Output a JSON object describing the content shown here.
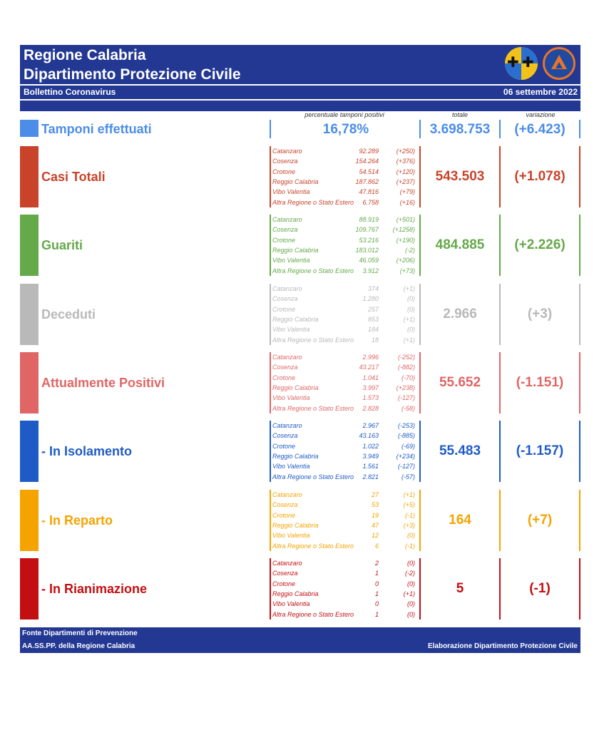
{
  "header": {
    "title_line1": "Regione Calabria",
    "title_line2": "Dipartimento Protezione Civile",
    "subtitle": "Bollettino Coronavirus",
    "date": "06 settembre 2022"
  },
  "columns": {
    "percent": "percentuale tamponi positivi",
    "total": "totale",
    "variation": "variazione"
  },
  "tamponi": {
    "label": "Tamponi effettuati",
    "percent": "16,78%",
    "total": "3.698.753",
    "variation": "(+6.423)",
    "color": "#4b8de8"
  },
  "sections": [
    {
      "label": "Casi Totali",
      "total": "543.503",
      "variation": "(+1.078)",
      "color": "#c9432a",
      "provinces": [
        {
          "name": "Catanzaro",
          "value": "92.289",
          "delta": "(+250)"
        },
        {
          "name": "Cosenza",
          "value": "154.264",
          "delta": "(+376)"
        },
        {
          "name": "Crotone",
          "value": "54.514",
          "delta": "(+120)"
        },
        {
          "name": "Reggio Calabria",
          "value": "187.862",
          "delta": "(+237)"
        },
        {
          "name": "Vibo Valentia",
          "value": "47.816",
          "delta": "(+79)"
        },
        {
          "name": "Altra Regione o Stato Estero",
          "value": "6.758",
          "delta": "(+16)"
        }
      ]
    },
    {
      "label": "Guariti",
      "total": "484.885",
      "variation": "(+2.226)",
      "color": "#64a94a",
      "provinces": [
        {
          "name": "Catanzaro",
          "value": "88.919",
          "delta": "(+501)"
        },
        {
          "name": "Cosenza",
          "value": "109.767",
          "delta": "(+1258)"
        },
        {
          "name": "Crotone",
          "value": "53.216",
          "delta": "(+190)"
        },
        {
          "name": "Reggio Calabria",
          "value": "183.012",
          "delta": "(-2)"
        },
        {
          "name": "Vibo Valentia",
          "value": "46.059",
          "delta": "(+206)"
        },
        {
          "name": "Altra Regione o Stato Estero",
          "value": "3.912",
          "delta": "(+73)"
        }
      ]
    },
    {
      "label": "Deceduti",
      "total": "2.966",
      "variation": "(+3)",
      "color": "#b9b9b9",
      "provinces": [
        {
          "name": "Catanzaro",
          "value": "374",
          "delta": "(+1)"
        },
        {
          "name": "Cosenza",
          "value": "1.280",
          "delta": "(0)"
        },
        {
          "name": "Crotone",
          "value": "257",
          "delta": "(0)"
        },
        {
          "name": "Reggio Calabria",
          "value": "853",
          "delta": "(+1)"
        },
        {
          "name": "Vibo Valentia",
          "value": "184",
          "delta": "(0)"
        },
        {
          "name": "Altra Regione o Stato Estero",
          "value": "18",
          "delta": "(+1)"
        }
      ]
    },
    {
      "label": "Attualmente Positivi",
      "total": "55.652",
      "variation": "(-1.151)",
      "color": "#e06666",
      "provinces": [
        {
          "name": "Catanzaro",
          "value": "2.996",
          "delta": "(-252)"
        },
        {
          "name": "Cosenza",
          "value": "43.217",
          "delta": "(-882)"
        },
        {
          "name": "Crotone",
          "value": "1.041",
          "delta": "(-70)"
        },
        {
          "name": "Reggio Calabria",
          "value": "3.997",
          "delta": "(+238)"
        },
        {
          "name": "Vibo Valentia",
          "value": "1.573",
          "delta": "(-127)"
        },
        {
          "name": "Altra Regione o Stato Estero",
          "value": "2.828",
          "delta": "(-58)"
        }
      ]
    },
    {
      "label": " - In Isolamento",
      "total": "55.483",
      "variation": "(-1.157)",
      "color": "#1f5bc6",
      "provinces": [
        {
          "name": "Catanzaro",
          "value": "2.967",
          "delta": "(-253)"
        },
        {
          "name": "Cosenza",
          "value": "43.163",
          "delta": "(-885)"
        },
        {
          "name": "Crotone",
          "value": "1.022",
          "delta": "(-69)"
        },
        {
          "name": "Reggio Calabria",
          "value": "3.949",
          "delta": "(+234)"
        },
        {
          "name": "Vibo Valentia",
          "value": "1.561",
          "delta": "(-127)"
        },
        {
          "name": "Altra Regione o Stato Estero",
          "value": "2.821",
          "delta": "(-57)"
        }
      ]
    },
    {
      "label": " - In Reparto",
      "total": "164",
      "variation": "(+7)",
      "color": "#f5a300",
      "provinces": [
        {
          "name": "Catanzaro",
          "value": "27",
          "delta": "(+1)"
        },
        {
          "name": "Cosenza",
          "value": "53",
          "delta": "(+5)"
        },
        {
          "name": "Crotone",
          "value": "19",
          "delta": "(-1)"
        },
        {
          "name": "Reggio Calabria",
          "value": "47",
          "delta": "(+3)"
        },
        {
          "name": "Vibo Valentia",
          "value": "12",
          "delta": "(0)"
        },
        {
          "name": "Altra Regione o Stato Estero",
          "value": "6",
          "delta": "(-1)"
        }
      ]
    },
    {
      "label": " - In Rianimazione",
      "total": "5",
      "variation": "(-1)",
      "color": "#c40f12",
      "provinces": [
        {
          "name": "Catanzaro",
          "value": "2",
          "delta": "(0)"
        },
        {
          "name": "Cosenza",
          "value": "1",
          "delta": "(-2)"
        },
        {
          "name": "Crotone",
          "value": "0",
          "delta": "(0)"
        },
        {
          "name": "Reggio Calabria",
          "value": "1",
          "delta": "(+1)"
        },
        {
          "name": "Vibo Valentia",
          "value": "0",
          "delta": "(0)"
        },
        {
          "name": "Altra Regione o Stato Estero",
          "value": "1",
          "delta": "(0)"
        }
      ]
    }
  ],
  "footer": {
    "line1": "Fonte Dipartimenti di Prevenzione",
    "line2": "AA.SS.PP.  della Regione Calabria",
    "right": "Elaborazione Dipartimento Protezione Civile"
  }
}
